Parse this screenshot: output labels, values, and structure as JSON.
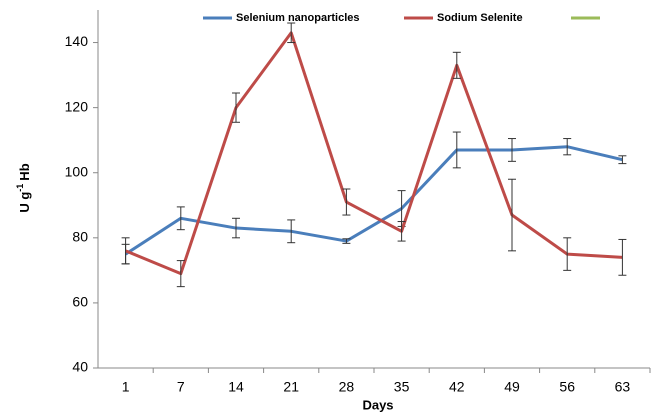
{
  "chart_data": {
    "type": "line",
    "categories": [
      "1",
      "7",
      "14",
      "21",
      "28",
      "35",
      "42",
      "49",
      "56",
      "63"
    ],
    "xlabel": "Days",
    "ylabel_parts": [
      "U g",
      "-1",
      "Hb"
    ],
    "ylim": [
      40,
      150
    ],
    "yticks": [
      40,
      60,
      80,
      100,
      120,
      140
    ],
    "series": [
      {
        "name": "Selenium nanoparticles",
        "color": "#4a7ebb",
        "values": [
          75,
          86,
          83,
          82,
          79,
          89,
          107,
          107,
          108,
          104
        ],
        "errors": [
          3,
          3.5,
          3,
          3.5,
          0.7,
          5.5,
          5.5,
          3.5,
          2.5,
          1.2
        ]
      },
      {
        "name": "Sodium Selenite",
        "color": "#be4b48",
        "values": [
          76,
          69,
          120,
          143,
          91,
          82,
          133,
          87,
          75,
          74
        ],
        "errors": [
          4,
          4,
          4.5,
          3,
          4,
          3,
          4,
          11,
          5,
          5.5
        ]
      },
      {
        "color": "#9bbb59",
        "values": [
          null,
          null,
          null,
          null,
          null,
          null,
          null,
          null,
          null,
          null
        ]
      }
    ]
  }
}
